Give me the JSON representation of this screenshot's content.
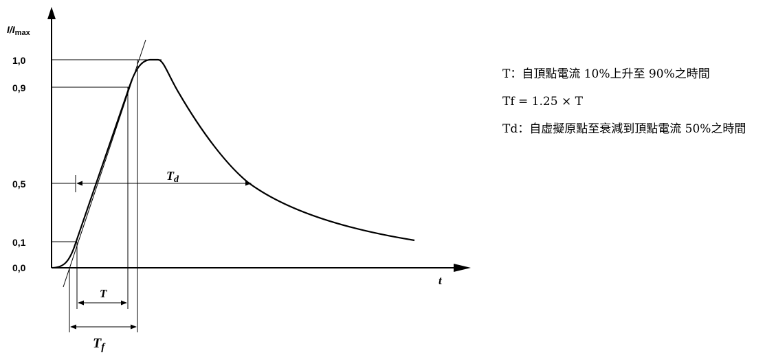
{
  "axes": {
    "y_label": "I/I",
    "y_label_sub": "max",
    "x_label": "t",
    "y_ticks": [
      "1,0",
      "0,9",
      "0,5",
      "0,1",
      "0,0"
    ]
  },
  "symbols": {
    "T": "T",
    "Tf_main": "T",
    "Tf_sub": "f",
    "Td_main": "T",
    "Td_sub": "d"
  },
  "legend": {
    "line1": "T：自頂點電流 10%上升至 90%之時間",
    "line2": "Tf = 1.25 × T",
    "line3": "Td：自虛擬原點至衰減到頂點電流 50%之時間"
  }
}
